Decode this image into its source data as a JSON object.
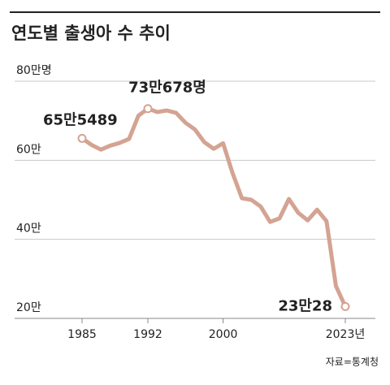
{
  "chart_data": {
    "type": "line",
    "title": "연도별 출생아 수 추이",
    "source": "자료=통계청",
    "categories": [
      "1985",
      null,
      null,
      null,
      null,
      null,
      null,
      "1992",
      null,
      null,
      null,
      null,
      null,
      null,
      null,
      "2000",
      null,
      null,
      null,
      null,
      null,
      null,
      null,
      null,
      null,
      null,
      null,
      null,
      "2023년"
    ],
    "series": [
      {
        "name": "출생아 수",
        "color": "#d4a392",
        "values": [
          65.5489,
          63.9,
          62.7,
          63.7,
          64.4,
          65.4,
          71.3,
          73.0678,
          72.2,
          72.6,
          72.0,
          69.5,
          67.8,
          64.6,
          62.9,
          64.3,
          56.8,
          50.4,
          50.0,
          48.3,
          44.4,
          45.3,
          50.2,
          46.7,
          44.8,
          47.5,
          44.6,
          28.2,
          23.0028
        ],
        "value_labels": [
          "65만5489",
          null,
          null,
          null,
          null,
          null,
          null,
          "73만678명",
          null,
          null,
          null,
          null,
          null,
          null,
          null,
          null,
          null,
          null,
          null,
          null,
          null,
          null,
          null,
          null,
          null,
          null,
          null,
          null,
          "23만28"
        ]
      }
    ],
    "ylim": [
      20,
      80
    ],
    "yticks": [
      {
        "value": 20,
        "label": "20만"
      },
      {
        "value": 40,
        "label": "40만"
      },
      {
        "value": 60,
        "label": "60만"
      },
      {
        "value": 80,
        "label": "80만명"
      }
    ],
    "grid": true
  }
}
